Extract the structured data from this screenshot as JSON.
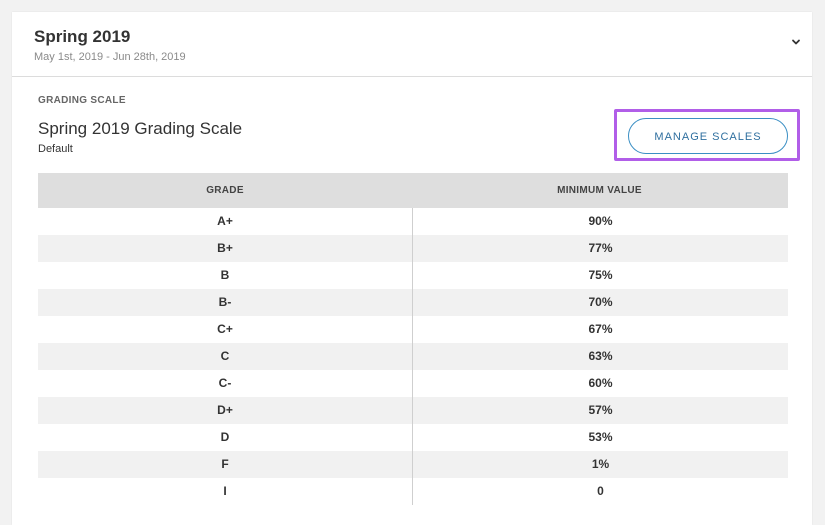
{
  "term": {
    "title": "Spring 2019",
    "dates": "May 1st, 2019 - Jun 28th, 2019"
  },
  "grading": {
    "section_label": "GRADING SCALE",
    "scale_name": "Spring 2019 Grading Scale",
    "scale_sub": "Default",
    "manage_button": "MANAGE SCALES"
  },
  "table": {
    "headers": [
      "GRADE",
      "MINIMUM VALUE"
    ],
    "rows": [
      {
        "grade": "A+",
        "min": "90%"
      },
      {
        "grade": "B+",
        "min": "77%"
      },
      {
        "grade": "B",
        "min": "75%"
      },
      {
        "grade": "B-",
        "min": "70%"
      },
      {
        "grade": "C+",
        "min": "67%"
      },
      {
        "grade": "C",
        "min": "63%"
      },
      {
        "grade": "C-",
        "min": "60%"
      },
      {
        "grade": "D+",
        "min": "57%"
      },
      {
        "grade": "D",
        "min": "53%"
      },
      {
        "grade": "F",
        "min": "1%"
      },
      {
        "grade": "I",
        "min": "0"
      }
    ]
  },
  "colors": {
    "accent_blue": "#3b8fc4",
    "highlight_purple": "#b15ee8",
    "header_bg": "#dedede",
    "row_alt_bg": "#f1f1f1"
  },
  "icons": {
    "collapse": "chevron-down-icon"
  }
}
